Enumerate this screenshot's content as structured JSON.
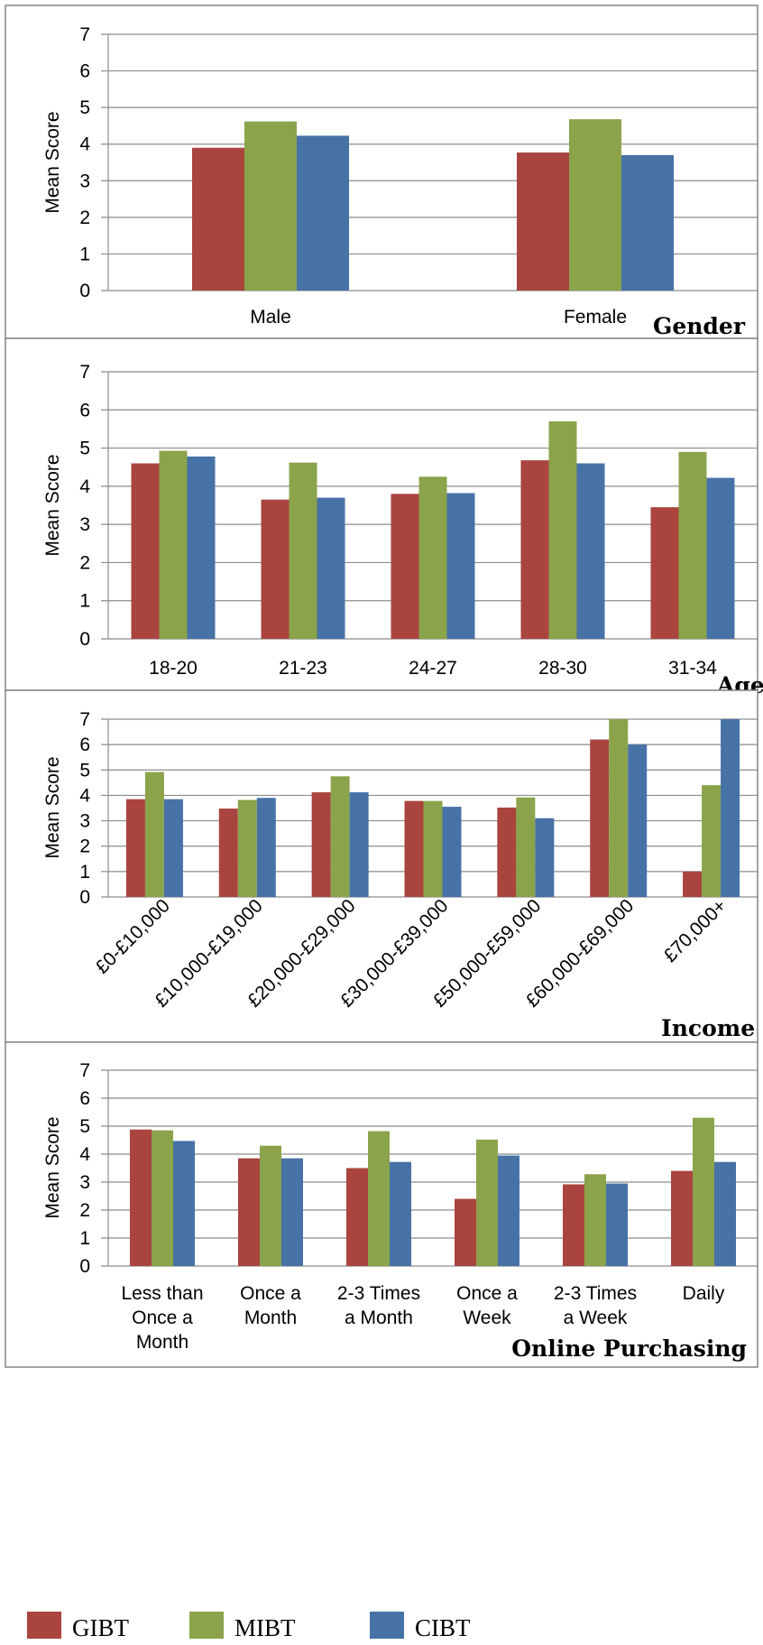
{
  "colors": {
    "GIBT": "#A9443F",
    "MIBT": "#8BA34A",
    "CIBT": "#4672A6"
  },
  "legend": [
    {
      "name": "GIBT",
      "color": "#A9443F"
    },
    {
      "name": "MIBT",
      "color": "#8BA34A"
    },
    {
      "name": "CIBT",
      "color": "#4672A6"
    }
  ],
  "chart_data": [
    {
      "type": "bar",
      "title": "Gender",
      "ylabel": "Mean Score",
      "ylim": [
        0,
        7
      ],
      "yticks": [
        "0",
        "1",
        "2",
        "3",
        "4",
        "5",
        "6",
        "7"
      ],
      "grid": true,
      "categories": [
        [
          "Male"
        ],
        [
          "Female"
        ]
      ],
      "series": [
        {
          "name": "GIBT",
          "values": [
            3.9,
            3.77
          ]
        },
        {
          "name": "MIBT",
          "values": [
            4.62,
            4.68
          ]
        },
        {
          "name": "CIBT",
          "values": [
            4.23,
            3.7
          ]
        }
      ]
    },
    {
      "type": "bar",
      "title": "Age",
      "ylabel": "Mean Score",
      "ylim": [
        0,
        7
      ],
      "yticks": [
        "0",
        "1",
        "2",
        "3",
        "4",
        "5",
        "6",
        "7"
      ],
      "grid": true,
      "categories": [
        [
          "18-20"
        ],
        [
          "21-23"
        ],
        [
          "24-27"
        ],
        [
          "28-30"
        ],
        [
          "31-34"
        ]
      ],
      "series": [
        {
          "name": "GIBT",
          "values": [
            4.6,
            3.65,
            3.8,
            4.68,
            3.45
          ]
        },
        {
          "name": "MIBT",
          "values": [
            4.93,
            4.62,
            4.25,
            5.7,
            4.9
          ]
        },
        {
          "name": "CIBT",
          "values": [
            4.78,
            3.7,
            3.82,
            4.6,
            4.22
          ]
        }
      ]
    },
    {
      "type": "bar",
      "title": "Income",
      "ylabel": "Mean Score",
      "ylim": [
        0,
        7
      ],
      "yticks": [
        "0",
        "1",
        "2",
        "3",
        "4",
        "5",
        "6",
        "7"
      ],
      "grid": true,
      "categories": [
        [
          "£0-£10,000"
        ],
        [
          "£10,000-£19,000"
        ],
        [
          "£20,000-£29,000"
        ],
        [
          "£30,000-£39,000"
        ],
        [
          "£50,000-£59,000"
        ],
        [
          "£60,000-£69,000"
        ],
        [
          "£70,000+"
        ]
      ],
      "series": [
        {
          "name": "GIBT",
          "values": [
            3.85,
            3.48,
            4.12,
            3.78,
            3.52,
            6.2,
            1.0
          ]
        },
        {
          "name": "MIBT",
          "values": [
            4.92,
            3.82,
            4.75,
            3.78,
            3.92,
            7.0,
            4.4
          ]
        },
        {
          "name": "CIBT",
          "values": [
            3.85,
            3.9,
            4.12,
            3.55,
            3.1,
            6.0,
            7.0
          ]
        }
      ]
    },
    {
      "type": "bar",
      "title": "Online Purchasing",
      "ylabel": "Mean Score",
      "ylim": [
        0,
        7
      ],
      "yticks": [
        "0",
        "1",
        "2",
        "3",
        "4",
        "5",
        "6",
        "7"
      ],
      "grid": true,
      "categories": [
        [
          "Less than",
          "Once a",
          "Month"
        ],
        [
          "Once a",
          "Month"
        ],
        [
          "2-3 Times",
          "a Month"
        ],
        [
          "Once a",
          "Week"
        ],
        [
          "2-3 Times",
          "a Week"
        ],
        [
          "Daily"
        ]
      ],
      "series": [
        {
          "name": "GIBT",
          "values": [
            4.88,
            3.85,
            3.5,
            2.4,
            2.92,
            3.4
          ]
        },
        {
          "name": "MIBT",
          "values": [
            4.85,
            4.3,
            4.82,
            4.52,
            3.28,
            5.3
          ]
        },
        {
          "name": "CIBT",
          "values": [
            4.47,
            3.85,
            3.72,
            3.95,
            2.95,
            3.72
          ]
        }
      ]
    }
  ]
}
